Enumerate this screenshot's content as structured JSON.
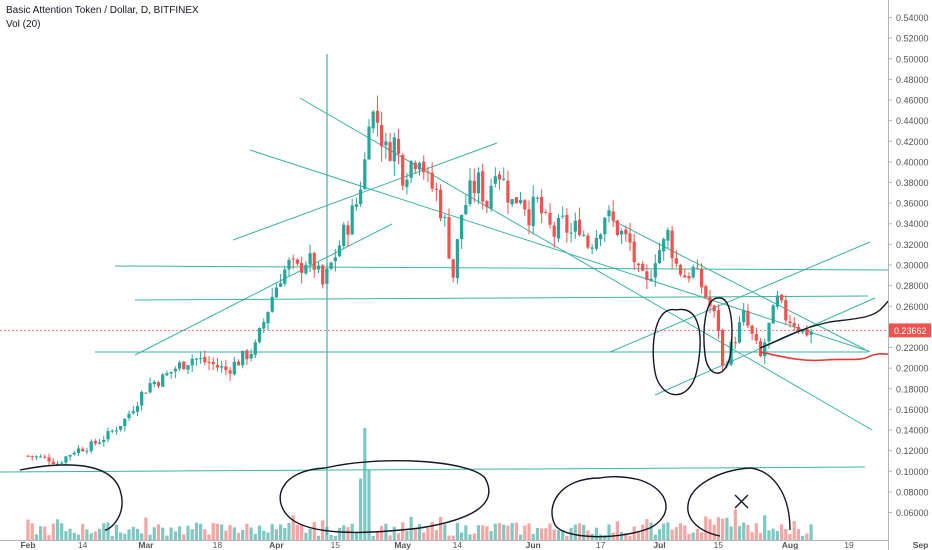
{
  "header": {
    "title": "Basic Attention Token / Dollar, D, BITFINEX",
    "volume_label": "Vol (20)"
  },
  "colors": {
    "up": "#26a69a",
    "down": "#ef5350",
    "up_volume": "#7fc8c1",
    "down_volume": "#f5a5a3",
    "trendline": "#3bb3a4",
    "price_badge": "#ef5350",
    "projection_black": "#131722",
    "projection_red": "#e53935",
    "axis_text": "#555555",
    "grid": "#e0e3eb"
  },
  "chart_data": {
    "type": "candlestick",
    "symbol": "Basic Attention Token / Dollar, D, BITFINEX",
    "indicator": "Vol (20)",
    "x_tick_labels": [
      "Feb",
      "14",
      "Mar",
      "18",
      "Apr",
      "15",
      "May",
      "14",
      "Jun",
      "17",
      "Jul",
      "15",
      "Aug",
      "19",
      "Sep"
    ],
    "x_ticks_day_index": [
      0,
      13,
      28,
      45,
      59,
      73,
      89,
      102,
      120,
      136,
      150,
      164,
      181,
      195,
      212
    ],
    "y_tick_labels": [
      "0.54000",
      "0.52000",
      "0.50000",
      "0.48000",
      "0.46000",
      "0.44000",
      "0.42000",
      "0.40000",
      "0.38000",
      "0.36000",
      "0.34000",
      "0.32000",
      "0.30000",
      "0.28000",
      "0.26000",
      "0.24000",
      "0.22000",
      "0.20000",
      "0.18000",
      "0.16000",
      "0.14000",
      "0.12000",
      "0.10000",
      "0.08000",
      "0.06000"
    ],
    "y_ticks": [
      0.54,
      0.52,
      0.5,
      0.48,
      0.46,
      0.44,
      0.42,
      0.4,
      0.38,
      0.36,
      0.34,
      0.32,
      0.3,
      0.28,
      0.26,
      0.24,
      0.22,
      0.2,
      0.18,
      0.16,
      0.14,
      0.12,
      0.1,
      0.08,
      0.06
    ],
    "y_range": [
      0.06,
      0.55
    ],
    "last_price": 0.23662,
    "last_price_label": "0.23662",
    "grid": false,
    "close_anchors": [
      [
        0,
        0.115
      ],
      [
        5,
        0.112
      ],
      [
        7,
        0.108
      ],
      [
        11,
        0.12
      ],
      [
        15,
        0.125
      ],
      [
        19,
        0.135
      ],
      [
        23,
        0.15
      ],
      [
        27,
        0.175
      ],
      [
        29,
        0.185
      ],
      [
        32,
        0.19
      ],
      [
        35,
        0.2
      ],
      [
        39,
        0.21
      ],
      [
        43,
        0.205
      ],
      [
        47,
        0.198
      ],
      [
        51,
        0.21
      ],
      [
        54,
        0.22
      ],
      [
        56,
        0.245
      ],
      [
        58,
        0.27
      ],
      [
        60,
        0.29
      ],
      [
        62,
        0.3
      ],
      [
        64,
        0.295
      ],
      [
        66,
        0.305
      ],
      [
        68,
        0.3
      ],
      [
        70,
        0.28
      ],
      [
        72,
        0.3
      ],
      [
        74,
        0.32
      ],
      [
        76,
        0.34
      ],
      [
        78,
        0.36
      ],
      [
        80,
        0.4
      ],
      [
        81,
        0.45
      ],
      [
        83,
        0.44
      ],
      [
        85,
        0.41
      ],
      [
        87,
        0.42
      ],
      [
        89,
        0.39
      ],
      [
        91,
        0.4
      ],
      [
        93,
        0.41
      ],
      [
        95,
        0.38
      ],
      [
        97,
        0.37
      ],
      [
        99,
        0.34
      ],
      [
        101,
        0.29
      ],
      [
        103,
        0.35
      ],
      [
        105,
        0.37
      ],
      [
        107,
        0.38
      ],
      [
        109,
        0.36
      ],
      [
        111,
        0.4
      ],
      [
        113,
        0.38
      ],
      [
        115,
        0.36
      ],
      [
        117,
        0.37
      ],
      [
        119,
        0.35
      ],
      [
        121,
        0.36
      ],
      [
        123,
        0.34
      ],
      [
        125,
        0.33
      ],
      [
        127,
        0.34
      ],
      [
        129,
        0.33
      ],
      [
        131,
        0.34
      ],
      [
        133,
        0.32
      ],
      [
        135,
        0.33
      ],
      [
        137,
        0.35
      ],
      [
        139,
        0.34
      ],
      [
        141,
        0.33
      ],
      [
        143,
        0.32
      ],
      [
        145,
        0.29
      ],
      [
        147,
        0.28
      ],
      [
        149,
        0.31
      ],
      [
        151,
        0.32
      ],
      [
        152,
        0.33
      ],
      [
        154,
        0.3
      ],
      [
        156,
        0.29
      ],
      [
        158,
        0.295
      ],
      [
        160,
        0.28
      ],
      [
        162,
        0.26
      ],
      [
        164,
        0.24
      ],
      [
        165,
        0.2
      ],
      [
        166,
        0.21
      ],
      [
        168,
        0.23
      ],
      [
        170,
        0.25
      ],
      [
        172,
        0.23
      ],
      [
        174,
        0.21
      ],
      [
        176,
        0.24
      ],
      [
        178,
        0.265
      ],
      [
        180,
        0.25
      ],
      [
        182,
        0.245
      ],
      [
        184,
        0.235
      ],
      [
        186,
        0.236
      ]
    ],
    "volume_y_range": [
      0,
      1.0
    ],
    "volume_note": "relative volume bars; spike near day 80",
    "annotations": {
      "horizontal_levels": [
        0.303,
        0.273,
        0.229,
        0.12
      ],
      "trend_channel": "descending channel from April high",
      "projection": "hand-drawn scenario lines after Aug"
    }
  }
}
